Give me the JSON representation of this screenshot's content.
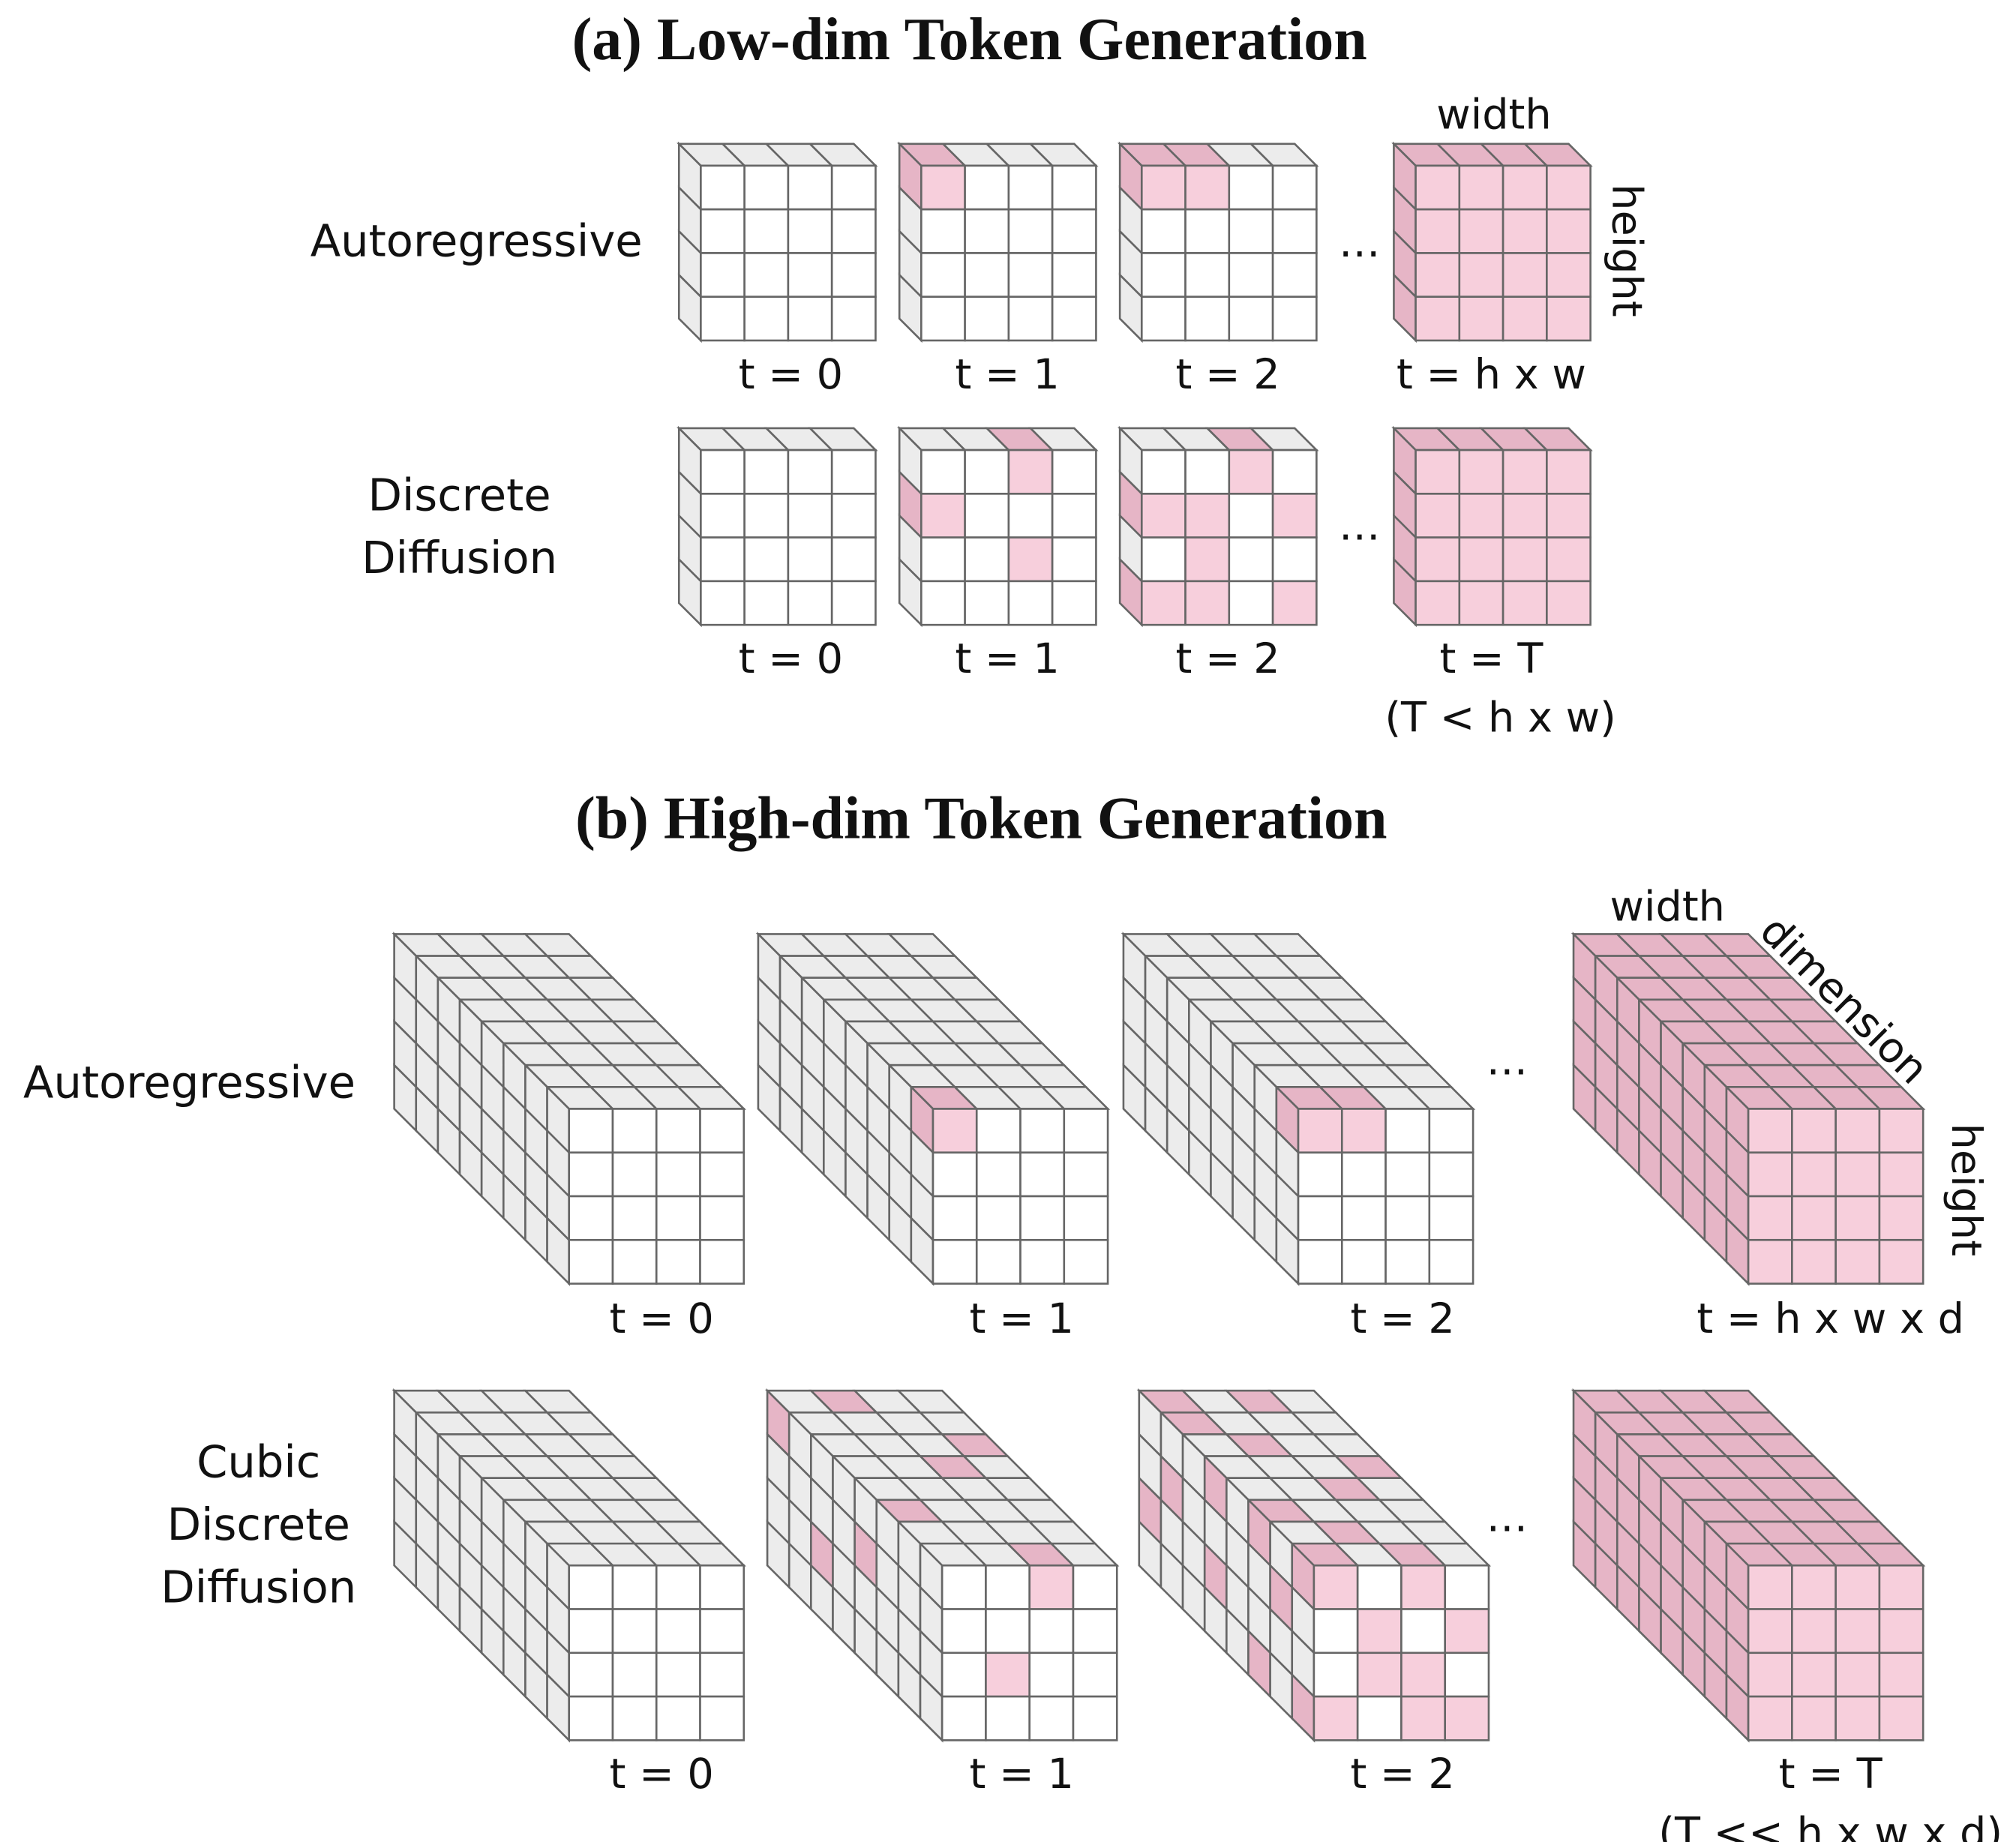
{
  "section_a": {
    "title": "(a) Low-dim Token Generation",
    "axis_labels": {
      "width": "width",
      "height": "height"
    },
    "rows": [
      {
        "label": [
          "Autoregressive"
        ],
        "steps": [
          "t = 0",
          "t = 1",
          "t = 2",
          "t = h x w"
        ],
        "ellipsis": "…"
      },
      {
        "label": [
          "Discrete",
          "Diffusion"
        ],
        "steps": [
          "t = 0",
          "t = 1",
          "t = 2",
          "t = T"
        ],
        "note": "(T < h x w)",
        "ellipsis": "…"
      }
    ]
  },
  "section_b": {
    "title": "(b) High-dim Token Generation",
    "axis_labels": {
      "width": "width",
      "dimension": "dimension",
      "height": "height"
    },
    "rows": [
      {
        "label": [
          "Autoregressive"
        ],
        "steps": [
          "t = 0",
          "t = 1",
          "t = 2",
          "t = h x w x d"
        ],
        "ellipsis": "…"
      },
      {
        "label": [
          "Cubic",
          "Discrete",
          "Diffusion"
        ],
        "steps": [
          "t = 0",
          "t = 1",
          "t = 2",
          "t = T"
        ],
        "note": "(T << h x w x d)",
        "ellipsis": "…"
      }
    ]
  }
}
